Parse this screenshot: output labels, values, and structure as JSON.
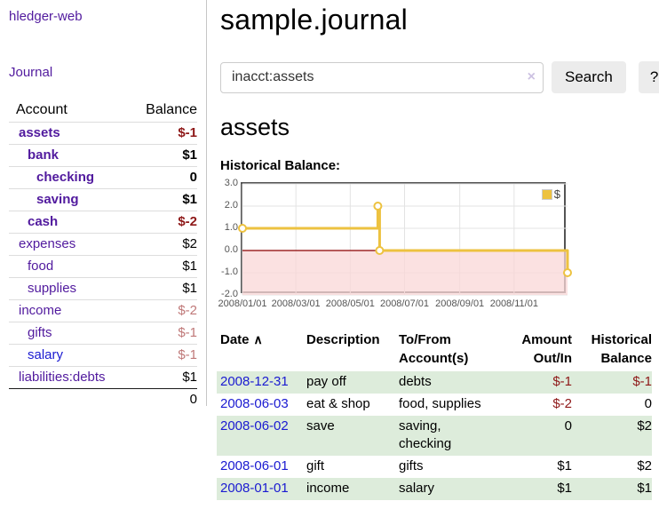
{
  "sidebar": {
    "brand": "hledger-web",
    "nav": {
      "journal": "Journal"
    },
    "accounts_table": {
      "headers": {
        "account": "Account",
        "balance": "Balance"
      },
      "rows": [
        {
          "name": "assets",
          "depth": 1,
          "bold": true,
          "balance": "$-1",
          "balance_style": "neg-strong"
        },
        {
          "name": "bank",
          "depth": 2,
          "bold": true,
          "balance": "$1",
          "balance_style": "pos"
        },
        {
          "name": "checking",
          "depth": 3,
          "bold": true,
          "balance": "0",
          "balance_style": "pos"
        },
        {
          "name": "saving",
          "depth": 3,
          "bold": true,
          "balance": "$1",
          "balance_style": "pos"
        },
        {
          "name": "cash",
          "depth": 2,
          "bold": true,
          "balance": "$-2",
          "balance_style": "neg-strong"
        },
        {
          "name": "expenses",
          "depth": 1,
          "bold": false,
          "balance": "$2",
          "balance_style": "pos"
        },
        {
          "name": "food",
          "depth": 2,
          "bold": false,
          "balance": "$1",
          "balance_style": "pos"
        },
        {
          "name": "supplies",
          "depth": 2,
          "bold": false,
          "balance": "$1",
          "balance_style": "pos"
        },
        {
          "name": "income",
          "depth": 1,
          "bold": false,
          "balance": "$-2",
          "balance_style": "neg-soft"
        },
        {
          "name": "gifts",
          "depth": 2,
          "bold": false,
          "balance": "$-1",
          "balance_style": "neg-soft"
        },
        {
          "name": "salary",
          "depth": 2,
          "bold": false,
          "balance": "$-1",
          "balance_style": "neg-soft",
          "link_color": "blue"
        },
        {
          "name": "liabilities:debts",
          "depth": 1,
          "bold": false,
          "balance": "$1",
          "balance_style": "pos"
        }
      ],
      "total": "0"
    }
  },
  "main": {
    "title": "sample.journal",
    "search": {
      "value": "inacct:assets",
      "clear_icon": "×",
      "search_button": "Search",
      "help_button": "?"
    },
    "account_heading": "assets",
    "chart_heading": "Historical Balance:",
    "register": {
      "headers": {
        "date": "Date",
        "sort_icon": "∧",
        "description": "Description",
        "accounts_line1": "To/From",
        "accounts_line2": "Account(s)",
        "amount_line1": "Amount",
        "amount_line2": "Out/In",
        "balance_line1": "Historical",
        "balance_line2": "Balance"
      },
      "rows": [
        {
          "date": "2008-12-31",
          "description": "pay off",
          "accounts": "debts",
          "amount": "$-1",
          "amount_neg": true,
          "balance": "$-1",
          "balance_neg": true
        },
        {
          "date": "2008-06-03",
          "description": "eat & shop",
          "accounts": "food, supplies",
          "amount": "$-2",
          "amount_neg": true,
          "balance": "0",
          "balance_neg": false
        },
        {
          "date": "2008-06-02",
          "description": "save",
          "accounts": "saving, checking",
          "amount": "0",
          "amount_neg": false,
          "balance": "$2",
          "balance_neg": false
        },
        {
          "date": "2008-06-01",
          "description": "gift",
          "accounts": "gifts",
          "amount": "$1",
          "amount_neg": false,
          "balance": "$2",
          "balance_neg": false
        },
        {
          "date": "2008-01-01",
          "description": "income",
          "accounts": "salary",
          "amount": "$1",
          "amount_neg": false,
          "balance": "$1",
          "balance_neg": false
        }
      ]
    }
  },
  "chart_data": {
    "type": "line",
    "title": "Historical Balance:",
    "interpolation": "step",
    "series": [
      {
        "name": "$",
        "color": "#edc240",
        "points": [
          [
            "2008-01-01",
            1
          ],
          [
            "2008-06-01",
            2
          ],
          [
            "2008-06-03",
            0
          ],
          [
            "2008-12-31",
            -1
          ]
        ]
      }
    ],
    "x_range": [
      "2008-01-01",
      "2008-12-31"
    ],
    "y_range": [
      -2,
      3
    ],
    "x_ticks": [
      {
        "date": "2008-01-01",
        "label": "2008/01/01"
      },
      {
        "date": "2008-03-01",
        "label": "2008/03/01"
      },
      {
        "date": "2008-05-01",
        "label": "2008/05/01"
      },
      {
        "date": "2008-07-01",
        "label": "2008/07/01"
      },
      {
        "date": "2008-09-01",
        "label": "2008/09/01"
      },
      {
        "date": "2008-11-01",
        "label": "2008/11/01"
      }
    ],
    "y_ticks": [
      {
        "v": 3,
        "label": "3.0"
      },
      {
        "v": 2,
        "label": "2.0"
      },
      {
        "v": 1,
        "label": "1.0"
      },
      {
        "v": 0,
        "label": "0.0"
      },
      {
        "v": -1,
        "label": "-1.0"
      },
      {
        "v": -2,
        "label": "-2.0"
      }
    ],
    "grid": true,
    "grid_color": "#e3e3e3",
    "zero_line_color": "#8b0000",
    "negative_region_fill": "#f9d7d7",
    "legend": {
      "position": "top-right",
      "label": "$",
      "swatch_color": "#edc240"
    }
  },
  "colors": {
    "link_purple": "#511a9e",
    "link_blue": "#1a1ad1",
    "negative_strong": "#8e1818",
    "negative_soft": "#bf7878",
    "row_stripe_green": "#ddecdb",
    "series_yellow": "#edc240"
  }
}
